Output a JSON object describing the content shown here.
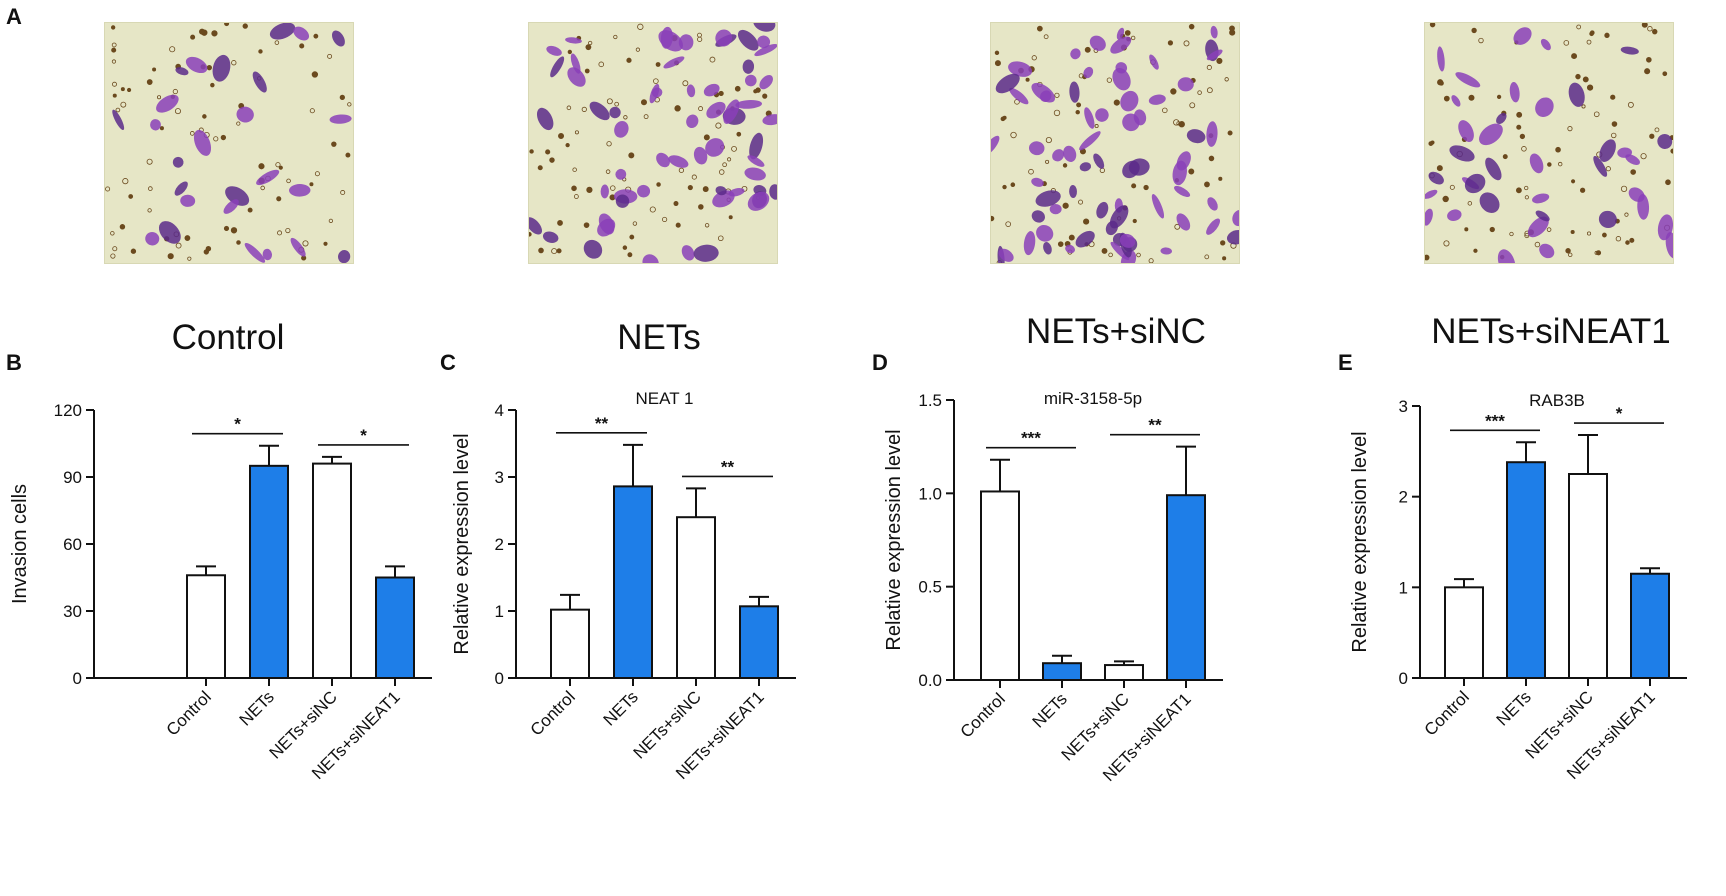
{
  "panel_labels": [
    "A",
    "B",
    "C",
    "D",
    "E"
  ],
  "micrographs": [
    {
      "caption": "Control",
      "density": 0.25
    },
    {
      "caption": "NETs",
      "density": 0.85
    },
    {
      "caption": "NETs+siNC",
      "density": 1.0
    },
    {
      "caption": "NETs+siNEAT1",
      "density": 0.45
    }
  ],
  "colors": {
    "blue_bar": "#1e7ee8",
    "white_bar": "#ffffff",
    "axis": "#111111",
    "micro_bg": "#e6e6c6",
    "cell": "#8a3fb8",
    "cell_dark": "#5a2a8a",
    "dot": "#6b4a1e"
  },
  "chart_data": [
    {
      "panel": "B",
      "type": "bar",
      "title": "",
      "ylabel": "Invasion cells",
      "categories": [
        "Control",
        "NETs",
        "NETs+siNC",
        "NETs+siNEAT1"
      ],
      "values": [
        46,
        95,
        96,
        45
      ],
      "errors": [
        4,
        9,
        3,
        5
      ],
      "bar_colors": [
        "white",
        "blue",
        "white",
        "blue"
      ],
      "ylim": [
        0,
        120
      ],
      "yticks": [
        "0",
        "30",
        "60",
        "90",
        "120"
      ],
      "yticks_values": [
        0,
        30,
        60,
        90,
        120
      ],
      "significance": [
        {
          "from": 0,
          "to": 1,
          "label": "*"
        },
        {
          "from": 2,
          "to": 3,
          "label": "*"
        }
      ]
    },
    {
      "panel": "C",
      "type": "bar",
      "title": "NEAT 1",
      "ylabel": "Relative expression level",
      "categories": [
        "Control",
        "NETs",
        "NETs+siNC",
        "NETs+siNEAT1"
      ],
      "values": [
        1.02,
        2.86,
        2.4,
        1.07
      ],
      "errors": [
        0.22,
        0.62,
        0.43,
        0.14
      ],
      "bar_colors": [
        "white",
        "blue",
        "white",
        "blue"
      ],
      "ylim": [
        0,
        4
      ],
      "yticks": [
        "0",
        "1",
        "2",
        "3",
        "4"
      ],
      "yticks_values": [
        0,
        1,
        2,
        3,
        4
      ],
      "significance": [
        {
          "from": 0,
          "to": 1,
          "label": "**"
        },
        {
          "from": 2,
          "to": 3,
          "label": "**"
        }
      ]
    },
    {
      "panel": "D",
      "type": "bar",
      "title": "miR-3158-5p",
      "ylabel": "Relative expression level",
      "categories": [
        "Control",
        "NETs",
        "NETs+siNC",
        "NETs+siNEAT1"
      ],
      "values": [
        1.01,
        0.09,
        0.08,
        0.99
      ],
      "errors": [
        0.17,
        0.04,
        0.02,
        0.26
      ],
      "bar_colors": [
        "white",
        "blue",
        "white",
        "blue"
      ],
      "ylim": [
        0,
        1.5
      ],
      "yticks": [
        "0.0",
        "0.5",
        "1.0",
        "1.5"
      ],
      "yticks_values": [
        0,
        0.5,
        1.0,
        1.5
      ],
      "significance": [
        {
          "from": 0,
          "to": 1,
          "label": "***"
        },
        {
          "from": 2,
          "to": 3,
          "label": "**"
        }
      ]
    },
    {
      "panel": "E",
      "type": "bar",
      "title": "RAB3B",
      "ylabel": "Relative expression level",
      "categories": [
        "Control",
        "NETs",
        "NETs+siNC",
        "NETs+siNEAT1"
      ],
      "values": [
        1.0,
        2.38,
        2.25,
        1.15
      ],
      "errors": [
        0.09,
        0.22,
        0.43,
        0.06
      ],
      "bar_colors": [
        "white",
        "blue",
        "white",
        "blue"
      ],
      "ylim": [
        0,
        3
      ],
      "yticks": [
        "0",
        "1",
        "2",
        "3"
      ],
      "yticks_values": [
        0,
        1,
        2,
        3
      ],
      "significance": [
        {
          "from": 0,
          "to": 1,
          "label": "***"
        },
        {
          "from": 2,
          "to": 3,
          "label": "*"
        }
      ]
    }
  ]
}
